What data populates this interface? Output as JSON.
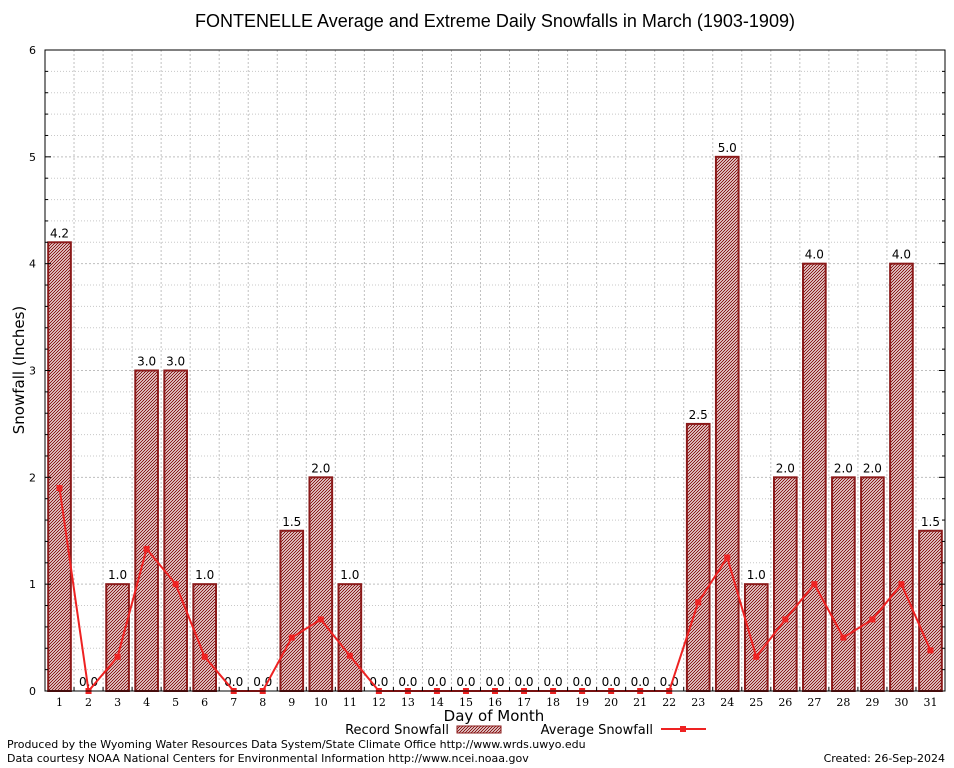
{
  "chart_data": {
    "type": "bar",
    "title": "FONTENELLE Average and Extreme Daily Snowfalls in March (1903-1909)",
    "xlabel": "Day of Month",
    "ylabel": "Snowfall (Inches)",
    "ylim": [
      0,
      6
    ],
    "yticks": [
      "0",
      "1",
      "2",
      "3",
      "4",
      "5",
      "6"
    ],
    "grid": true,
    "legend_position": "bottom-center",
    "categories": [
      "1",
      "2",
      "3",
      "4",
      "5",
      "6",
      "7",
      "8",
      "9",
      "10",
      "11",
      "12",
      "13",
      "14",
      "15",
      "16",
      "17",
      "18",
      "19",
      "20",
      "21",
      "22",
      "23",
      "24",
      "25",
      "26",
      "27",
      "28",
      "29",
      "30",
      "31"
    ],
    "series": [
      {
        "name": "Record Snowfall",
        "kind": "bar",
        "color": "#8b1a1a",
        "values": [
          4.2,
          0.0,
          1.0,
          3.0,
          3.0,
          1.0,
          0.0,
          0.0,
          1.5,
          2.0,
          1.0,
          0.0,
          0.0,
          0.0,
          0.0,
          0.0,
          0.0,
          0.0,
          0.0,
          0.0,
          0.0,
          0.0,
          2.5,
          5.0,
          1.0,
          2.0,
          4.0,
          2.0,
          2.0,
          4.0,
          1.5
        ],
        "labels": [
          "4.2",
          "0.0",
          "1.0",
          "3.0",
          "3.0",
          "1.0",
          "0.0",
          "0.0",
          "1.5",
          "2.0",
          "1.0",
          "0.0",
          "0.0",
          "0.0",
          "0.0",
          "0.0",
          "0.0",
          "0.0",
          "0.0",
          "0.0",
          "0.0",
          "0.0",
          "2.5",
          "5.0",
          "1.0",
          "2.0",
          "4.0",
          "2.0",
          "2.0",
          "4.0",
          "1.5"
        ]
      },
      {
        "name": "Average Snowfall",
        "kind": "line",
        "color": "#ee2222",
        "values": [
          1.9,
          0.0,
          0.32,
          1.33,
          1.0,
          0.32,
          0.0,
          0.0,
          0.5,
          0.67,
          0.33,
          0.0,
          0.0,
          0.0,
          0.0,
          0.0,
          0.0,
          0.0,
          0.0,
          0.0,
          0.0,
          0.0,
          0.83,
          1.25,
          0.32,
          0.67,
          1.0,
          0.5,
          0.67,
          1.0,
          0.38
        ]
      }
    ]
  },
  "footer": {
    "producer": "Produced by the Wyoming Water Resources Data System/State Climate Office http://www.wrds.uwyo.edu",
    "courtesy": "Data courtesy NOAA National Centers for Environmental Information http://www.ncei.noaa.gov",
    "created": "Created:  26-Sep-2024"
  }
}
